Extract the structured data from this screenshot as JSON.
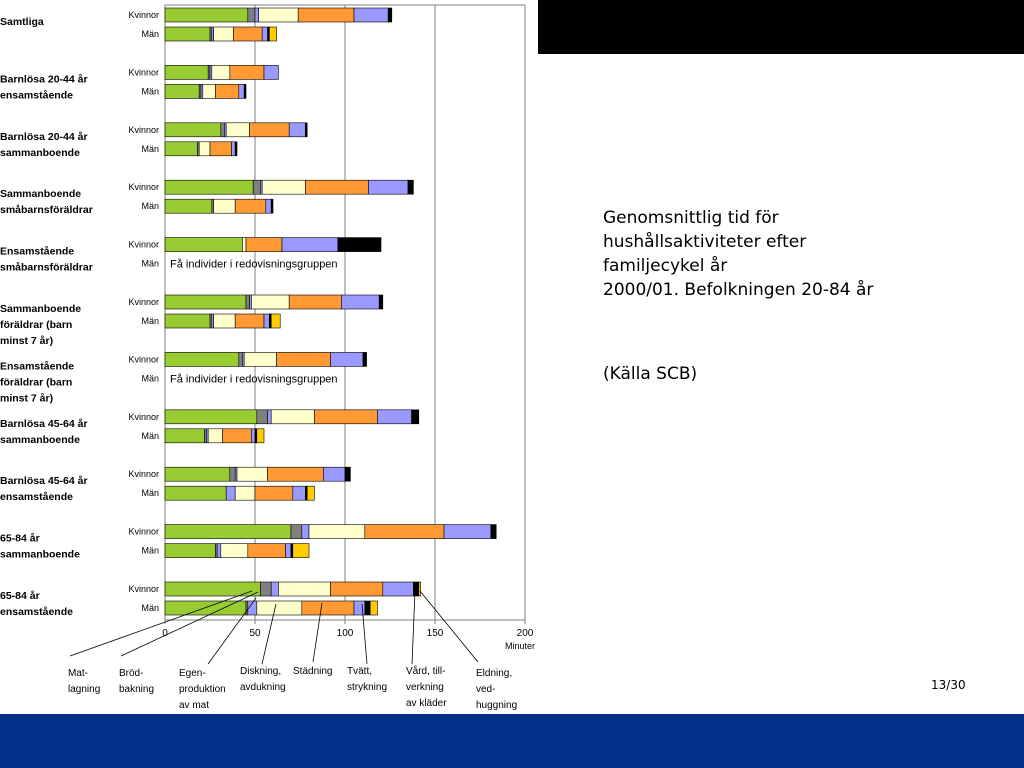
{
  "slide": {
    "caption_lines": [
      "Genomsnittlig tid för",
      "hushållsaktiviteter efter",
      "familjecykel år",
      "2000/01. Befolkningen 20-84 år"
    ],
    "source": "(Källa SCB)",
    "page_number": "13/30"
  },
  "chart_data": {
    "type": "bar",
    "orientation": "horizontal",
    "stacked": true,
    "xlabel": "Minuter",
    "xlim": [
      0,
      200
    ],
    "xticks": [
      0,
      50,
      100,
      150,
      200
    ],
    "grid": true,
    "activities": [
      {
        "name": "Mat-lagning",
        "color": "#99CC33"
      },
      {
        "name": "Bröd-bakning",
        "color": "#808080"
      },
      {
        "name": "Egen-produktion av mat",
        "color": "#9999FF"
      },
      {
        "name": "Diskning, avdukning",
        "color": "#FFFFCC"
      },
      {
        "name": "Städning",
        "color": "#FF9933"
      },
      {
        "name": "Tvätt, strykning",
        "color": "#9999FF"
      },
      {
        "name": "Vård, till-verkning av kläder",
        "color": "#000000"
      },
      {
        "name": "Eldning, ved-huggning",
        "color": "#FFCC00"
      }
    ],
    "groups": [
      {
        "label": [
          "Samtliga"
        ],
        "bars": [
          {
            "sex": "Kvinnor",
            "values": [
              46,
              4,
              2,
              22,
              31,
              19,
              2,
              0
            ]
          },
          {
            "sex": "Män",
            "values": [
              25,
              1,
              1,
              11,
              16,
              3,
              1,
              4
            ]
          }
        ]
      },
      {
        "label": [
          "Barnlösa 20-44 år",
          "ensamstående"
        ],
        "bars": [
          {
            "sex": "Kvinnor",
            "values": [
              24,
              1,
              1,
              10,
              19,
              8,
              0,
              0
            ]
          },
          {
            "sex": "Män",
            "values": [
              19,
              1,
              1,
              7,
              13,
              3,
              1,
              0
            ]
          }
        ]
      },
      {
        "label": [
          "Barnlösa 20-44 år",
          "sammanboende"
        ],
        "bars": [
          {
            "sex": "Kvinnor",
            "values": [
              31,
              2,
              1,
              13,
              22,
              9,
              1,
              0
            ]
          },
          {
            "sex": "Män",
            "values": [
              18,
              1,
              0,
              6,
              12,
              2,
              1,
              0
            ]
          }
        ]
      },
      {
        "label": [
          "Sammanboende",
          "småbarnsföräldrar"
        ],
        "bars": [
          {
            "sex": "Kvinnor",
            "values": [
              49,
              4,
              1,
              24,
              35,
              22,
              3,
              0
            ]
          },
          {
            "sex": "Män",
            "values": [
              26,
              1,
              0,
              12,
              17,
              3,
              1,
              0
            ]
          }
        ]
      },
      {
        "label": [
          "Ensamstående",
          "småbarnsföräldrar"
        ],
        "bars": [
          {
            "sex": "Kvinnor",
            "values": [
              43,
              0,
              0,
              2,
              20,
              31,
              24,
              0
            ]
          },
          {
            "sex": "Män",
            "values": [],
            "note": "Få individer i redovisningsgruppen"
          }
        ]
      },
      {
        "label": [
          "Sammanboende",
          "föräldrar (barn",
          "minst 7 år)"
        ],
        "bars": [
          {
            "sex": "Kvinnor",
            "values": [
              45,
              2,
              1,
              21,
              29,
              21,
              2,
              0
            ]
          },
          {
            "sex": "Män",
            "values": [
              25,
              1,
              1,
              12,
              16,
              3,
              1,
              5
            ]
          }
        ]
      },
      {
        "label": [
          "Ensamstående",
          "föräldrar (barn",
          "minst 7 år)"
        ],
        "bars": [
          {
            "sex": "Kvinnor",
            "values": [
              41,
              2,
              1,
              18,
              30,
              18,
              2,
              0
            ]
          },
          {
            "sex": "Män",
            "values": [],
            "note": "Få individer i redovisningsgruppen"
          }
        ]
      },
      {
        "label": [
          "Barnlösa 45-64 år",
          "sammanboende"
        ],
        "bars": [
          {
            "sex": "Kvinnor",
            "values": [
              51,
              6,
              2,
              24,
              35,
              19,
              4,
              0
            ]
          },
          {
            "sex": "Män",
            "values": [
              22,
              1,
              1,
              8,
              16,
              2,
              1,
              4
            ]
          }
        ]
      },
      {
        "label": [
          "Barnlösa 45-64 år",
          "ensamstående"
        ],
        "bars": [
          {
            "sex": "Kvinnor",
            "values": [
              36,
              3,
              1,
              17,
              31,
              12,
              3,
              0
            ]
          },
          {
            "sex": "Män",
            "values": [
              34,
              0,
              5,
              11,
              21,
              7,
              1,
              4
            ]
          }
        ]
      },
      {
        "label": [
          "65-84 år",
          "sammanboende"
        ],
        "bars": [
          {
            "sex": "Kvinnor",
            "values": [
              70,
              6,
              4,
              31,
              44,
              26,
              3,
              0
            ]
          },
          {
            "sex": "Män",
            "values": [
              28,
              1,
              2,
              15,
              21,
              3,
              1,
              9
            ]
          }
        ]
      },
      {
        "label": [
          "65-84 år",
          "ensamstående"
        ],
        "bars": [
          {
            "sex": "Kvinnor",
            "values": [
              53,
              6,
              4,
              29,
              29,
              17,
              3,
              1
            ]
          },
          {
            "sex": "Män",
            "values": [
              45,
              1,
              5,
              25,
              29,
              6,
              3,
              4
            ]
          }
        ]
      }
    ]
  }
}
